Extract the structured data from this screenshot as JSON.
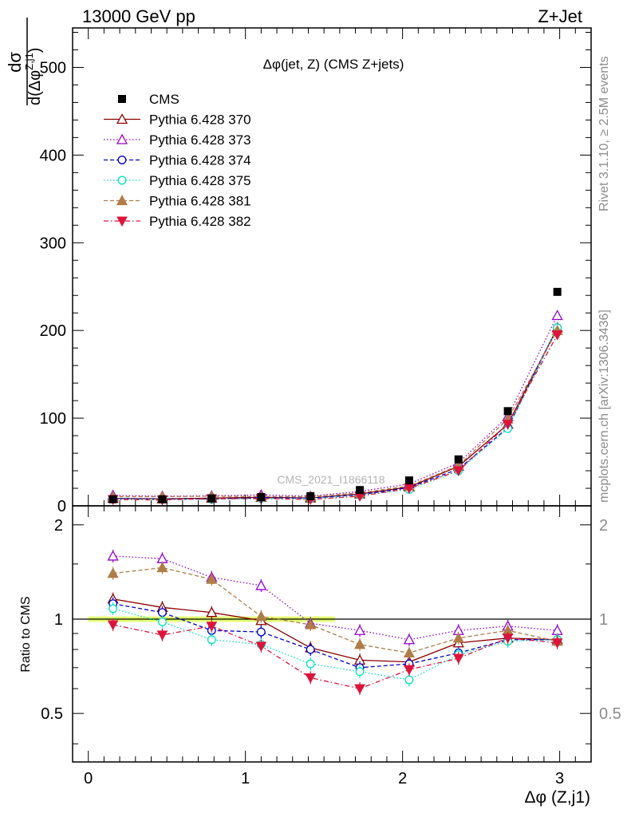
{
  "header": {
    "energy_label": "13000 GeV pp",
    "process_label": "Z+Jet"
  },
  "side": {
    "rivet_label": "Rivet 3.1.10, ≥ 2.5M events",
    "mcplots_label": "mcplots.cern.ch [arXiv:1306.3436]"
  },
  "watermark": "CMS_2021_I1866118",
  "colors": {
    "cms": "#000000",
    "p370": "#8b0000",
    "p373": "#9400d3",
    "p374": "#0000cd",
    "p375": "#00e5c0",
    "p381": "#b07c47",
    "p382": "#dc143c",
    "band": "#ddff55"
  },
  "chart_data": [
    {
      "type": "scatter",
      "title": "Δφ(jet, Z) (CMS Z+jets)",
      "ylabel_num": "dσ",
      "ylabel_den": "d(Δφ",
      "ylabel_sup": "Z,j1",
      "ylabel_close": ")",
      "xlim": [
        -0.1,
        3.2
      ],
      "ylim": [
        0,
        545
      ],
      "yticks": [
        0,
        100,
        200,
        300,
        400,
        500
      ],
      "ytick_labels": [
        "0",
        "100",
        "200",
        "300",
        "400",
        "500"
      ],
      "x": [
        0.157,
        0.471,
        0.785,
        1.1,
        1.414,
        1.728,
        2.042,
        2.356,
        2.67,
        2.985
      ],
      "series": [
        {
          "name": "CMS",
          "key": "cms",
          "marker": "square-filled",
          "line": "none",
          "values": [
            7.5,
            7.5,
            8.5,
            10,
            11,
            18,
            29,
            53,
            108,
            244
          ]
        },
        {
          "name": "Pythia 6.428 370",
          "key": "p370",
          "marker": "triangle-up-open",
          "line": "solid",
          "values": [
            8.5,
            8.0,
            8.8,
            9.8,
            9.0,
            13.5,
            21.5,
            45,
            93,
            203
          ]
        },
        {
          "name": "Pythia 6.428 373",
          "key": "p373",
          "marker": "triangle-up-open",
          "line": "dotted",
          "values": [
            12,
            11,
            11.5,
            12.5,
            11,
            16.5,
            25,
            49,
            102,
            217
          ]
        },
        {
          "name": "Pythia 6.428 374",
          "key": "p374",
          "marker": "circle-open",
          "line": "dashed",
          "values": [
            8.3,
            7.8,
            7.9,
            9.2,
            8.8,
            12.6,
            20.9,
            42,
            89,
            203
          ]
        },
        {
          "name": "Pythia 6.428 375",
          "key": "p375",
          "marker": "circle-open",
          "line": "dotted",
          "values": [
            8.0,
            7.4,
            7.4,
            8.3,
            7.9,
            12.1,
            18.6,
            40,
            88,
            203
          ]
        },
        {
          "name": "Pythia 6.428 381",
          "key": "p381",
          "marker": "triangle-up-filled",
          "line": "dashed",
          "values": [
            10.5,
            10.5,
            11,
            10.5,
            10.5,
            14.8,
            22.6,
            46,
            99,
            200
          ]
        },
        {
          "name": "Pythia 6.428 382",
          "key": "p382",
          "marker": "triangle-down-filled",
          "line": "dashdot",
          "values": [
            7.2,
            6.8,
            8.1,
            8.3,
            7.3,
            11.0,
            20.0,
            40,
            93,
            195
          ]
        }
      ]
    },
    {
      "type": "scatter",
      "ylabel": "Ratio to CMS",
      "xlabel": "Δφ (Z,j1)",
      "xlim": [
        -0.1,
        3.2
      ],
      "ylim": [
        0.35,
        2.3
      ],
      "yticks": [
        0.5,
        1,
        2
      ],
      "ytick_labels": [
        "0.5",
        "1",
        "2"
      ],
      "xticks": [
        0,
        1,
        2,
        3
      ],
      "xtick_labels": [
        "0",
        "1",
        "2",
        "3"
      ],
      "x": [
        0.157,
        0.471,
        0.785,
        1.1,
        1.414,
        1.728,
        2.042,
        2.356,
        2.67,
        2.985
      ],
      "band": {
        "x_range": [
          0,
          1.57
        ],
        "low": 0.98,
        "high": 1.02
      },
      "series": [
        {
          "name": "Pythia 6.428 370",
          "key": "p370",
          "values": [
            1.16,
            1.09,
            1.05,
            0.99,
            0.81,
            0.74,
            0.73,
            0.84,
            0.87,
            0.86
          ]
        },
        {
          "name": "Pythia 6.428 373",
          "key": "p373",
          "values": [
            1.59,
            1.56,
            1.36,
            1.28,
            0.97,
            0.92,
            0.86,
            0.92,
            0.95,
            0.92
          ]
        },
        {
          "name": "Pythia 6.428 374",
          "key": "p374",
          "values": [
            1.12,
            1.05,
            0.92,
            0.91,
            0.8,
            0.7,
            0.72,
            0.78,
            0.86,
            0.86
          ]
        },
        {
          "name": "Pythia 6.428 375",
          "key": "p375",
          "values": [
            1.08,
            0.98,
            0.86,
            0.83,
            0.72,
            0.68,
            0.64,
            0.77,
            0.85,
            0.86
          ]
        },
        {
          "name": "Pythia 6.428 381",
          "key": "p381",
          "values": [
            1.4,
            1.46,
            1.34,
            1.02,
            0.96,
            0.83,
            0.78,
            0.87,
            0.92,
            0.85
          ]
        },
        {
          "name": "Pythia 6.428 382",
          "key": "p382",
          "values": [
            0.96,
            0.89,
            0.95,
            0.82,
            0.65,
            0.6,
            0.69,
            0.75,
            0.87,
            0.84
          ]
        }
      ]
    }
  ]
}
